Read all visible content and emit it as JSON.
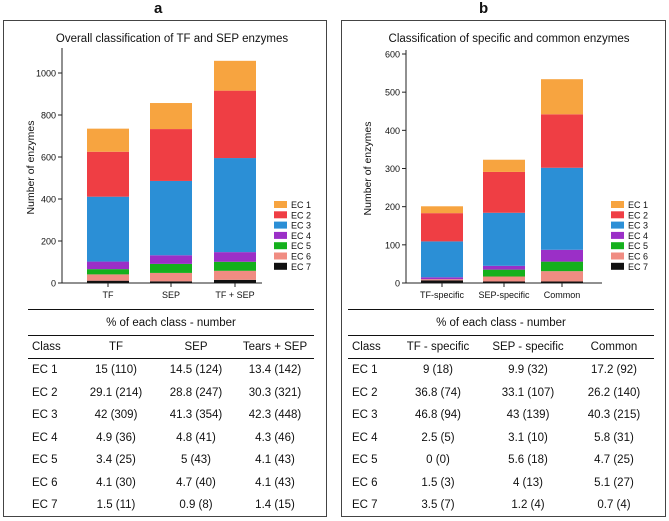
{
  "colors": {
    "EC 1": "#f7a440",
    "EC 2": "#ef3e44",
    "EC 3": "#2b8fd6",
    "EC 4": "#9b2fc7",
    "EC 5": "#14b01c",
    "EC 6": "#f08c82",
    "EC 7": "#111111"
  },
  "chart_data": [
    {
      "panel": "a",
      "type": "bar",
      "stacked": true,
      "title": "Overall classification of TF and SEP enzymes",
      "xlabel": "",
      "ylabel": "Number of enzymes",
      "ylim": [
        0,
        1100
      ],
      "yticks": [
        0,
        200,
        400,
        600,
        800,
        1000
      ],
      "categories": [
        "TF",
        "SEP",
        "TF + SEP"
      ],
      "series": [
        {
          "name": "EC 7",
          "values": [
            11,
            8,
            15
          ]
        },
        {
          "name": "EC 6",
          "values": [
            30,
            40,
            43
          ]
        },
        {
          "name": "EC 5",
          "values": [
            25,
            43,
            43
          ]
        },
        {
          "name": "EC 4",
          "values": [
            36,
            41,
            46
          ]
        },
        {
          "name": "EC 3",
          "values": [
            309,
            354,
            448
          ]
        },
        {
          "name": "EC 2",
          "values": [
            214,
            247,
            321
          ]
        },
        {
          "name": "EC 1",
          "values": [
            110,
            124,
            142
          ]
        }
      ],
      "legend": [
        "EC 1",
        "EC 2",
        "EC 3",
        "EC 4",
        "EC 5",
        "EC 6",
        "EC 7"
      ],
      "legend_position": "right"
    },
    {
      "panel": "b",
      "type": "bar",
      "stacked": true,
      "title": "Classification of specific and common enzymes",
      "xlabel": "",
      "ylabel": "Number of enzymes",
      "ylim": [
        0,
        600
      ],
      "yticks": [
        0,
        100,
        200,
        300,
        400,
        500,
        600
      ],
      "categories": [
        "TF-specific",
        "SEP-specific",
        "Common"
      ],
      "series": [
        {
          "name": "EC 7",
          "values": [
            7,
            4,
            4
          ]
        },
        {
          "name": "EC 6",
          "values": [
            3,
            13,
            27
          ]
        },
        {
          "name": "EC 5",
          "values": [
            0,
            18,
            25
          ]
        },
        {
          "name": "EC 4",
          "values": [
            5,
            10,
            31
          ]
        },
        {
          "name": "EC 3",
          "values": [
            94,
            139,
            215
          ]
        },
        {
          "name": "EC 2",
          "values": [
            74,
            107,
            140
          ]
        },
        {
          "name": "EC 1",
          "values": [
            18,
            32,
            92
          ]
        }
      ],
      "legend": [
        "EC 1",
        "EC 2",
        "EC 3",
        "EC 4",
        "EC 5",
        "EC 6",
        "EC 7"
      ],
      "legend_position": "right"
    }
  ],
  "panel_a": {
    "letter": "a",
    "table": {
      "caption": "% of each class - number",
      "headers": [
        "Class",
        "TF",
        "SEP",
        "Tears + SEP"
      ],
      "rows": [
        [
          "EC 1",
          "15 (110)",
          "14.5 (124)",
          "13.4 (142)"
        ],
        [
          "EC 2",
          "29.1 (214)",
          "28.8 (247)",
          "30.3 (321)"
        ],
        [
          "EC 3",
          "42 (309)",
          "41.3 (354)",
          "42.3 (448)"
        ],
        [
          "EC 4",
          "4.9 (36)",
          "4.8 (41)",
          "4.3 (46)"
        ],
        [
          "EC 5",
          "3.4 (25)",
          "5 (43)",
          "4.1 (43)"
        ],
        [
          "EC 6",
          "4.1 (30)",
          "4.7 (40)",
          "4.1 (43)"
        ],
        [
          "EC 7",
          "1.5 (11)",
          "0.9 (8)",
          "1.4 (15)"
        ]
      ]
    }
  },
  "panel_b": {
    "letter": "b",
    "table": {
      "caption": "% of each class - number",
      "headers": [
        "Class",
        "TF - specific",
        "SEP - specific",
        "Common"
      ],
      "rows": [
        [
          "EC 1",
          "9 (18)",
          "9.9 (32)",
          "17.2 (92)"
        ],
        [
          "EC 2",
          "36.8 (74)",
          "33.1 (107)",
          "26.2 (140)"
        ],
        [
          "EC 3",
          "46.8 (94)",
          "43 (139)",
          "40.3 (215)"
        ],
        [
          "EC 4",
          "2.5 (5)",
          "3.1 (10)",
          "5.8 (31)"
        ],
        [
          "EC 5",
          "0 (0)",
          "5.6 (18)",
          "4.7 (25)"
        ],
        [
          "EC 6",
          "1.5 (3)",
          "4 (13)",
          "5.1 (27)"
        ],
        [
          "EC 7",
          "3.5 (7)",
          "1.2 (4)",
          "0.7 (4)"
        ]
      ]
    }
  }
}
